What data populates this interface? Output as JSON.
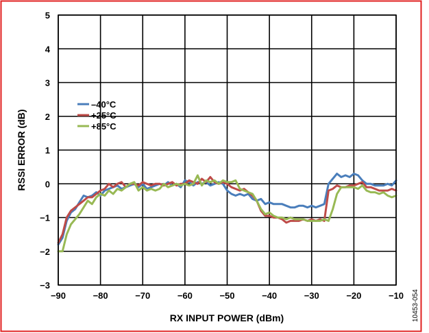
{
  "figure_id": "10453-054",
  "colors": {
    "border": "#e02020",
    "grid": "#000000",
    "series": [
      "#4a7ebb",
      "#be4b48",
      "#98b954"
    ]
  },
  "chart_data": {
    "type": "line",
    "xlabel": "RX INPUT POWER (dBm)",
    "ylabel": "RSSI ERROR (dB)",
    "xlim": [
      -90,
      -10
    ],
    "ylim": [
      -3,
      5
    ],
    "xticks": [
      -90,
      -80,
      -70,
      -60,
      -50,
      -40,
      -30,
      -20,
      -10
    ],
    "yticks": [
      -3,
      -2,
      -1,
      0,
      1,
      2,
      3,
      4,
      5
    ],
    "grid": true,
    "legend_position": "upper-left",
    "series": [
      {
        "name": "–40°C",
        "color": "#4a7ebb",
        "x": [
          -90,
          -89,
          -88,
          -87,
          -86,
          -85,
          -84,
          -83,
          -82,
          -81,
          -80,
          -79,
          -78,
          -77,
          -76,
          -75,
          -74,
          -73,
          -72,
          -71,
          -70,
          -69,
          -68,
          -67,
          -66,
          -65,
          -64,
          -63,
          -62,
          -61,
          -60,
          -59,
          -58,
          -57,
          -56,
          -55,
          -54,
          -53,
          -52,
          -51,
          -50,
          -49,
          -48,
          -47,
          -46,
          -45,
          -44,
          -43,
          -42,
          -41,
          -40,
          -39,
          -38,
          -37,
          -36,
          -35,
          -34,
          -33,
          -32,
          -31,
          -30,
          -29,
          -28,
          -27,
          -26,
          -25,
          -24,
          -23,
          -22,
          -21,
          -20,
          -19,
          -18,
          -17,
          -16,
          -15,
          -14,
          -13,
          -12,
          -11,
          -10
        ],
        "y": [
          -1.8,
          -1.6,
          -1.1,
          -0.85,
          -0.75,
          -0.55,
          -0.35,
          -0.4,
          -0.35,
          -0.25,
          -0.35,
          -0.2,
          -0.15,
          -0.1,
          -0.05,
          -0.15,
          -0.1,
          -0.05,
          0.0,
          -0.1,
          0.0,
          -0.15,
          -0.1,
          -0.05,
          0.0,
          -0.05,
          0.05,
          -0.05,
          0.0,
          -0.1,
          0.1,
          0.05,
          -0.05,
          0.05,
          0.0,
          0.05,
          -0.05,
          0.0,
          0.05,
          0.0,
          -0.2,
          -0.3,
          -0.35,
          -0.3,
          -0.35,
          -0.3,
          -0.45,
          -0.5,
          -0.45,
          -0.6,
          -0.55,
          -0.6,
          -0.6,
          -0.6,
          -0.65,
          -0.7,
          -0.7,
          -0.65,
          -0.65,
          -0.7,
          -0.65,
          -0.7,
          -0.65,
          -0.6,
          0.0,
          0.15,
          0.3,
          0.2,
          0.25,
          0.2,
          0.3,
          0.25,
          0.1,
          0.0,
          0.0,
          -0.05,
          -0.05,
          -0.05,
          0.0,
          -0.05,
          0.1
        ]
      },
      {
        "name": "+25°C",
        "color": "#be4b48",
        "x": [
          -90,
          -89,
          -88,
          -87,
          -86,
          -85,
          -84,
          -83,
          -82,
          -81,
          -80,
          -79,
          -78,
          -77,
          -76,
          -75,
          -74,
          -73,
          -72,
          -71,
          -70,
          -69,
          -68,
          -67,
          -66,
          -65,
          -64,
          -63,
          -62,
          -61,
          -60,
          -59,
          -58,
          -57,
          -56,
          -55,
          -54,
          -53,
          -52,
          -51,
          -50,
          -49,
          -48,
          -47,
          -46,
          -45,
          -44,
          -43,
          -42,
          -41,
          -40,
          -39,
          -38,
          -37,
          -36,
          -35,
          -34,
          -33,
          -32,
          -31,
          -30,
          -29,
          -28,
          -27,
          -26,
          -25,
          -24,
          -23,
          -22,
          -21,
          -20,
          -19,
          -18,
          -17,
          -16,
          -15,
          -14,
          -13,
          -12,
          -11,
          -10
        ],
        "y": [
          -1.75,
          -1.5,
          -1.0,
          -0.8,
          -0.7,
          -0.6,
          -0.5,
          -0.4,
          -0.4,
          -0.3,
          -0.2,
          -0.15,
          0.0,
          -0.1,
          0.0,
          0.05,
          -0.1,
          0.0,
          0.0,
          -0.05,
          0.05,
          0.0,
          -0.05,
          0.0,
          0.0,
          -0.05,
          0.0,
          0.05,
          -0.05,
          0.0,
          0.0,
          0.1,
          0.05,
          0.0,
          0.15,
          0.05,
          0.2,
          0.05,
          0.0,
          0.05,
          0.0,
          -0.1,
          -0.15,
          -0.2,
          -0.15,
          -0.25,
          -0.35,
          -0.5,
          -0.8,
          -0.95,
          -0.95,
          -1.0,
          -1.0,
          -1.05,
          -1.15,
          -1.1,
          -1.1,
          -1.1,
          -1.05,
          -1.1,
          -1.05,
          -1.1,
          -1.05,
          -1.1,
          -0.2,
          -0.15,
          -0.05,
          -0.1,
          -0.1,
          -0.05,
          -0.05,
          0.0,
          0.05,
          -0.1,
          -0.1,
          -0.15,
          -0.2,
          -0.2,
          -0.2,
          -0.15,
          -0.2
        ]
      },
      {
        "name": "+85°C",
        "color": "#98b954",
        "x": [
          -90,
          -89,
          -88,
          -87,
          -86,
          -85,
          -84,
          -83,
          -82,
          -81,
          -80,
          -79,
          -78,
          -77,
          -76,
          -75,
          -74,
          -73,
          -72,
          -71,
          -70,
          -69,
          -68,
          -67,
          -66,
          -65,
          -64,
          -63,
          -62,
          -61,
          -60,
          -59,
          -58,
          -57,
          -56,
          -55,
          -54,
          -53,
          -52,
          -51,
          -50,
          -49,
          -48,
          -47,
          -46,
          -45,
          -44,
          -43,
          -42,
          -41,
          -40,
          -39,
          -38,
          -37,
          -36,
          -35,
          -34,
          -33,
          -32,
          -31,
          -30,
          -29,
          -28,
          -27,
          -26,
          -25,
          -24,
          -23,
          -22,
          -21,
          -20,
          -19,
          -18,
          -17,
          -16,
          -15,
          -14,
          -13,
          -12,
          -11,
          -10
        ],
        "y": [
          -2.0,
          -2.0,
          -1.5,
          -1.2,
          -1.05,
          -0.9,
          -0.7,
          -0.5,
          -0.6,
          -0.4,
          -0.3,
          -0.35,
          -0.2,
          -0.3,
          -0.15,
          -0.2,
          -0.1,
          0.0,
          0.05,
          -0.2,
          -0.1,
          -0.2,
          -0.15,
          -0.2,
          -0.15,
          0.0,
          -0.1,
          -0.05,
          0.0,
          -0.05,
          0.0,
          -0.05,
          0.0,
          0.25,
          -0.05,
          0.1,
          0.05,
          0.1,
          0.0,
          0.1,
          0.05,
          0.05,
          0.1,
          -0.15,
          -0.2,
          -0.25,
          -0.3,
          -0.5,
          -0.75,
          -0.9,
          -0.85,
          -0.95,
          -1.0,
          -1.0,
          -1.05,
          -1.0,
          -1.05,
          -1.05,
          -1.05,
          -1.1,
          -1.1,
          -1.1,
          -1.1,
          -1.05,
          -1.1,
          -0.75,
          -0.3,
          -0.1,
          -0.1,
          -0.1,
          -0.1,
          -0.15,
          -0.05,
          -0.2,
          -0.25,
          -0.25,
          -0.3,
          -0.25,
          -0.35,
          -0.4,
          -0.35
        ]
      }
    ]
  }
}
